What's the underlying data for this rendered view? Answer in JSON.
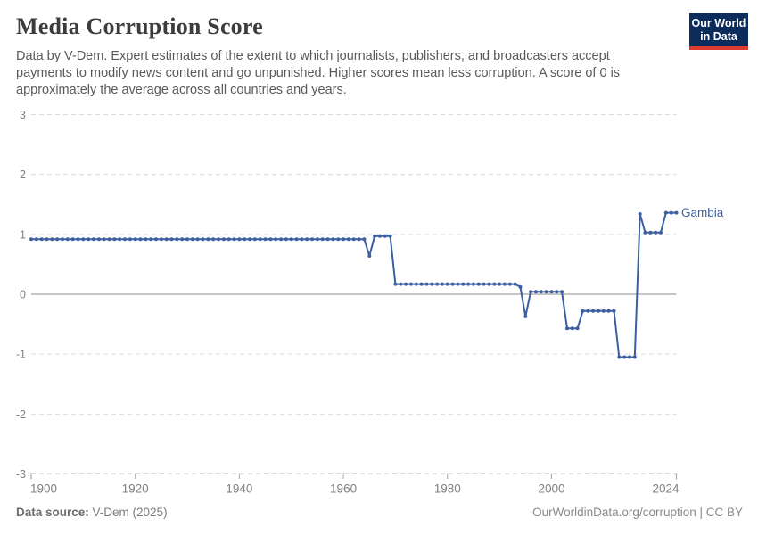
{
  "header": {
    "title": "Media Corruption Score",
    "subtitle": "Data by V-Dem. Expert estimates of the extent to which journalists, publishers, and broadcasters accept payments to modify news content and go unpunished. Higher scores mean less corruption. A score of 0 is approximately the average across all countries and years."
  },
  "logo": {
    "line1": "Our World",
    "line2": "in Data"
  },
  "footer": {
    "source_label": "Data source:",
    "source_value": " V-Dem (2025)",
    "license": "OurWorldinData.org/corruption | CC BY"
  },
  "colors": {
    "accent": "#3d5fa0",
    "gridline": "#dadada",
    "zero_line": "#a3a3a3",
    "tick": "#a8a8a8",
    "axis_text": "#818181",
    "logo_bg": "#0c2d5c",
    "logo_red": "#dc3a2c"
  },
  "chart_data": {
    "type": "line",
    "title": "Media Corruption Score",
    "xlabel": "",
    "ylabel": "",
    "xlim": [
      1900,
      2024
    ],
    "ylim": [
      -3,
      3
    ],
    "x_ticks": [
      1900,
      1920,
      1940,
      1960,
      1980,
      2000,
      2024
    ],
    "y_ticks": [
      3,
      2,
      1,
      0,
      -1,
      -2,
      -3
    ],
    "grid": "dashed horizontal, solid zero line",
    "legend_position": "end-of-line label",
    "series": [
      {
        "name": "Gambia",
        "segments": [
          {
            "from": 1900,
            "to": 1964,
            "value": 0.92
          },
          {
            "from": 1965,
            "to": 1965,
            "value": 0.64
          },
          {
            "from": 1966,
            "to": 1969,
            "value": 0.97
          },
          {
            "from": 1970,
            "to": 1993,
            "value": 0.17
          },
          {
            "from": 1994,
            "to": 1994,
            "value": 0.12
          },
          {
            "from": 1995,
            "to": 1995,
            "value": -0.37
          },
          {
            "from": 1996,
            "to": 2002,
            "value": 0.04
          },
          {
            "from": 2003,
            "to": 2005,
            "value": -0.57
          },
          {
            "from": 2006,
            "to": 2012,
            "value": -0.28
          },
          {
            "from": 2013,
            "to": 2016,
            "value": -1.05
          },
          {
            "from": 2017,
            "to": 2017,
            "value": 1.34
          },
          {
            "from": 2018,
            "to": 2021,
            "value": 1.03
          },
          {
            "from": 2022,
            "to": 2024,
            "value": 1.36
          }
        ]
      }
    ]
  }
}
